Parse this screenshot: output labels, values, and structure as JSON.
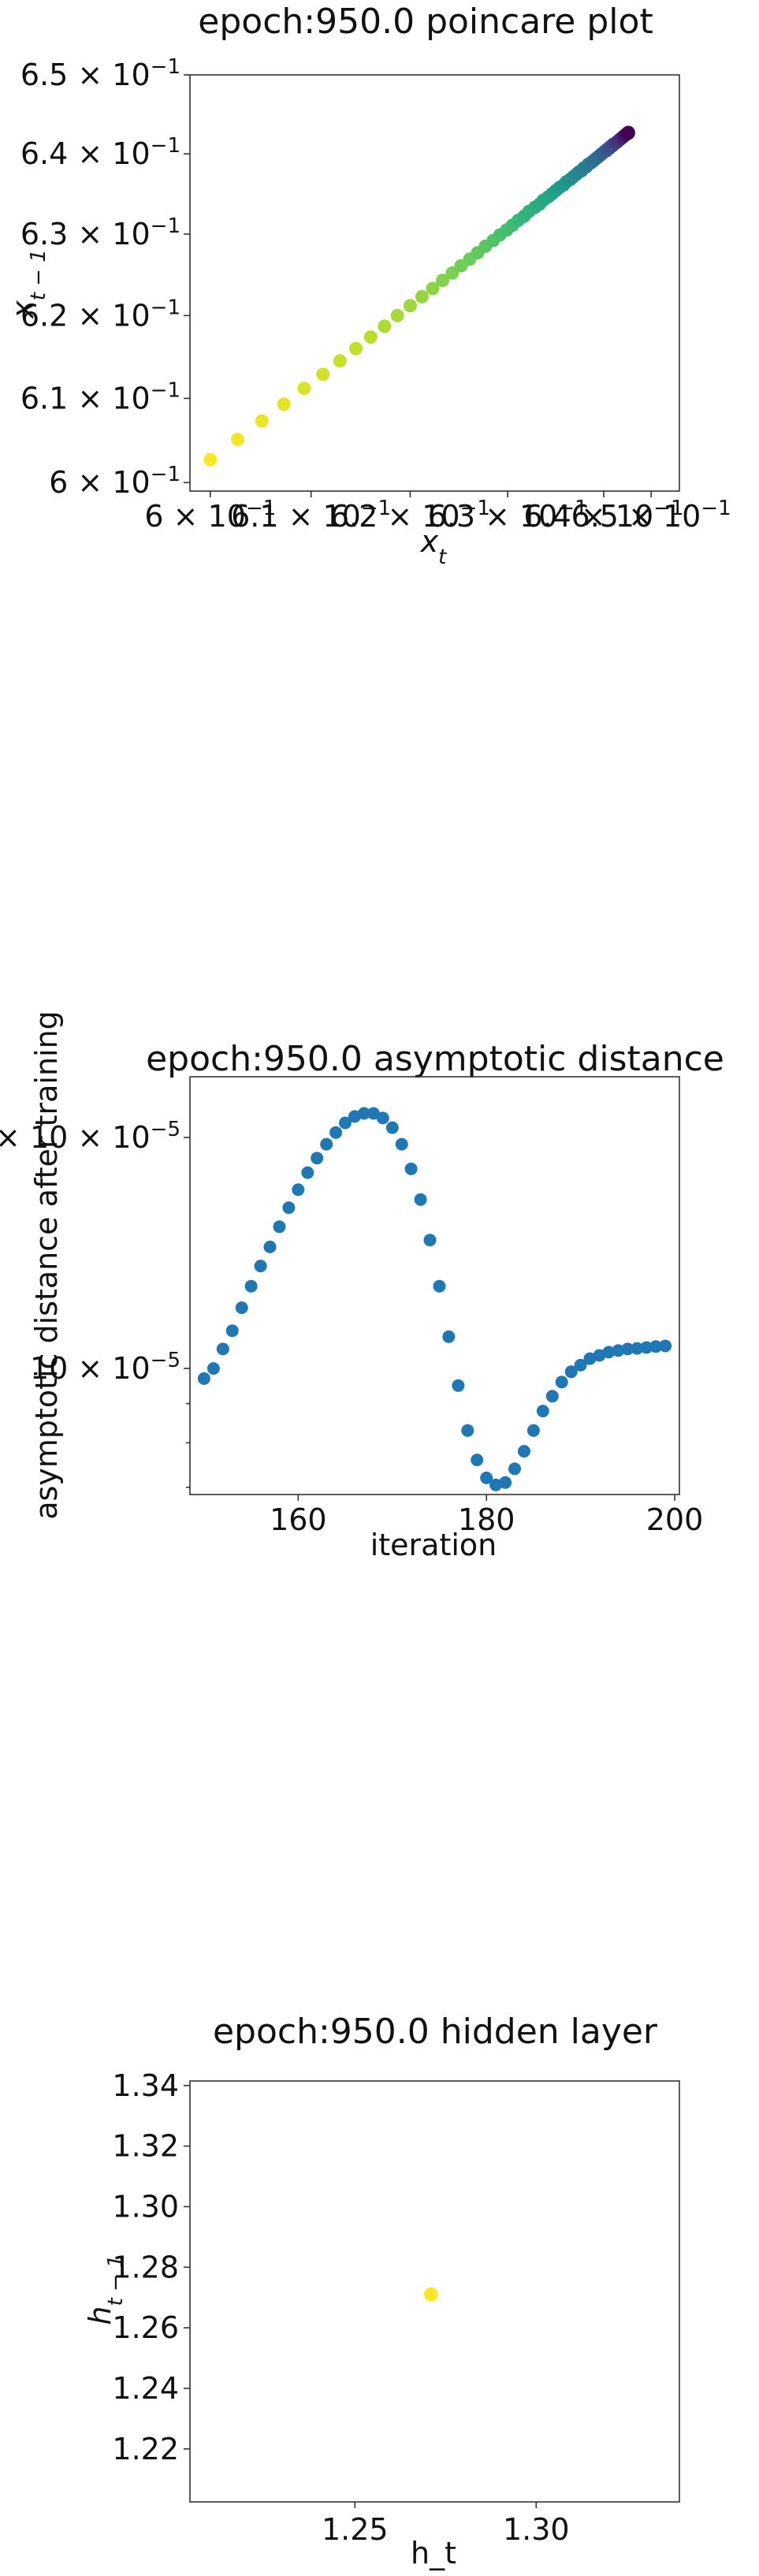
{
  "chart_data": [
    {
      "type": "scatter",
      "title": "epoch:950.0 poincare plot",
      "xlabel": "x_t",
      "ylabel": "x_{t-1}",
      "xscale": "log",
      "yscale": "log",
      "xlim": [
        0.598,
        0.648
      ],
      "ylim": [
        0.599,
        0.65
      ],
      "x_ticks": [
        {
          "value": 0.6,
          "mant": "6",
          "exp": "−1"
        },
        {
          "value": 0.61,
          "mant": "6.1",
          "exp": "−1"
        },
        {
          "value": 0.62,
          "mant": "6.2",
          "exp": "−1"
        },
        {
          "value": 0.63,
          "mant": "6.3",
          "exp": "−1"
        },
        {
          "value": 0.64,
          "mant": "6.4",
          "exp": "−1"
        },
        {
          "value": 0.645,
          "mant": "6.5",
          "exp": "−1"
        }
      ],
      "y_ticks": [
        {
          "value": 0.6,
          "mant": "6",
          "exp": "−1"
        },
        {
          "value": 0.61,
          "mant": "6.1",
          "exp": "−1"
        },
        {
          "value": 0.62,
          "mant": "6.2",
          "exp": "−1"
        },
        {
          "value": 0.63,
          "mant": "6.3",
          "exp": "−1"
        },
        {
          "value": 0.64,
          "mant": "6.4",
          "exp": "−1"
        },
        {
          "value": 0.65,
          "mant": "6.5",
          "exp": "−1"
        }
      ],
      "colormap": [
        "#fde725",
        "#b5de2b",
        "#6ece58",
        "#35b779",
        "#1f9e89",
        "#26828e",
        "#31688e",
        "#3e4989",
        "#482878",
        "#440154"
      ],
      "x": [
        0.6,
        0.6027,
        0.6051,
        0.6073,
        0.6093,
        0.6112,
        0.6129,
        0.6145,
        0.616,
        0.6174,
        0.6187,
        0.62,
        0.6212,
        0.6223,
        0.6233,
        0.6243,
        0.6252,
        0.6261,
        0.6269,
        0.6277,
        0.6285,
        0.6292,
        0.6299,
        0.6305,
        0.6311,
        0.6317,
        0.6322,
        0.6328,
        0.6333,
        0.6337,
        0.6342,
        0.6346,
        0.635,
        0.6354,
        0.6358,
        0.6361,
        0.6365,
        0.6368,
        0.6371,
        0.6374,
        0.6377,
        0.6379,
        0.6382,
        0.6384,
        0.6387,
        0.6389,
        0.6391,
        0.6393,
        0.6395,
        0.6397,
        0.6399,
        0.6401,
        0.6403,
        0.6404,
        0.6406,
        0.6407,
        0.6409,
        0.641,
        0.6412,
        0.6413,
        0.6414,
        0.6415,
        0.6416,
        0.6417,
        0.6418,
        0.6419,
        0.642,
        0.6421,
        0.6422,
        0.6423,
        0.6424,
        0.6425,
        0.6426,
        0.6426
      ],
      "y": [
        0.6027,
        0.6051,
        0.6073,
        0.6093,
        0.6112,
        0.6129,
        0.6145,
        0.616,
        0.6174,
        0.6187,
        0.62,
        0.6212,
        0.6223,
        0.6233,
        0.6243,
        0.6252,
        0.6261,
        0.6269,
        0.6277,
        0.6285,
        0.6292,
        0.6299,
        0.6305,
        0.6311,
        0.6317,
        0.6322,
        0.6328,
        0.6333,
        0.6337,
        0.6342,
        0.6346,
        0.635,
        0.6354,
        0.6358,
        0.6361,
        0.6365,
        0.6368,
        0.6371,
        0.6374,
        0.6377,
        0.6379,
        0.6382,
        0.6384,
        0.6387,
        0.6389,
        0.6391,
        0.6393,
        0.6395,
        0.6397,
        0.6399,
        0.6401,
        0.6403,
        0.6404,
        0.6406,
        0.6407,
        0.6409,
        0.641,
        0.6412,
        0.6413,
        0.6414,
        0.6415,
        0.6416,
        0.6417,
        0.6418,
        0.6419,
        0.642,
        0.6421,
        0.6422,
        0.6423,
        0.6424,
        0.6425,
        0.6426,
        0.6426,
        0.6427
      ]
    },
    {
      "type": "scatter",
      "title": "epoch:950.0 asymptotic distance",
      "xlabel": "iteration",
      "ylabel": "asymptotic distance after training",
      "yscale": "log",
      "xlim": [
        148.5,
        200.5
      ],
      "ylim": [
        6.85e-06,
        2.4e-05
      ],
      "x_ticks": [
        160,
        180,
        200
      ],
      "y_ticks": [
        {
          "value": 1e-05,
          "mant": "10",
          "exp": "−5"
        },
        {
          "value": 2e-05,
          "mant": "2 × 10",
          "exp": "−5"
        }
      ],
      "y_minor_ticks": [
        7e-06,
        8e-06,
        9e-06
      ],
      "color": "#1f77b4",
      "x": [
        150,
        151,
        152,
        153,
        154,
        155,
        156,
        157,
        158,
        159,
        160,
        161,
        162,
        163,
        164,
        165,
        166,
        167,
        168,
        169,
        170,
        171,
        172,
        173,
        174,
        175,
        176,
        177,
        178,
        179,
        180,
        181,
        182,
        183,
        184,
        185,
        186,
        187,
        188,
        189,
        190,
        191,
        192,
        193,
        194,
        195,
        196,
        197,
        198,
        199
      ],
      "y": [
        9.7e-06,
        1e-05,
        1.06e-05,
        1.12e-05,
        1.2e-05,
        1.28e-05,
        1.36e-05,
        1.44e-05,
        1.53e-05,
        1.62e-05,
        1.71e-05,
        1.8e-05,
        1.88e-05,
        1.96e-05,
        2.03e-05,
        2.09e-05,
        2.13e-05,
        2.15e-05,
        2.15e-05,
        2.12e-05,
        2.06e-05,
        1.96e-05,
        1.82e-05,
        1.66e-05,
        1.47e-05,
        1.28e-05,
        1.1e-05,
        9.5e-06,
        8.3e-06,
        7.6e-06,
        7.2e-06,
        7.05e-06,
        7.1e-06,
        7.4e-06,
        7.8e-06,
        8.3e-06,
        8.8e-06,
        9.2e-06,
        9.6e-06,
        9.9e-06,
        1.01e-05,
        1.03e-05,
        1.04e-05,
        1.05e-05,
        1.055e-05,
        1.06e-05,
        1.062e-05,
        1.065e-05,
        1.068e-05,
        1.07e-05
      ]
    },
    {
      "type": "scatter",
      "title": "epoch:950.0 hidden layer",
      "xlabel": "h_t",
      "ylabel": "h_{t-1}",
      "xlim": [
        1.2045,
        1.3395
      ],
      "ylim": [
        1.2025,
        1.3415
      ],
      "x_ticks": [
        "1.25",
        "1.30"
      ],
      "y_ticks": [
        "1.22",
        "1.24",
        "1.26",
        "1.28",
        "1.30",
        "1.32",
        "1.34"
      ],
      "color": "#fde725",
      "x": [
        1.271
      ],
      "y": [
        1.271
      ]
    }
  ]
}
